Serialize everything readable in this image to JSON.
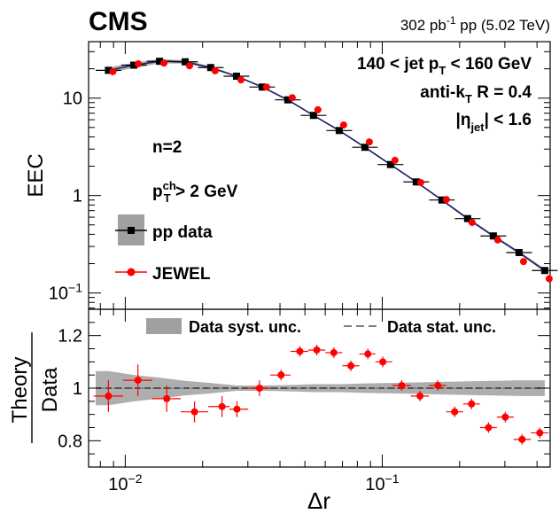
{
  "header": {
    "experiment": "CMS",
    "lumi_value": "302 pb",
    "lumi_exp": "-1",
    "lumi_rest": " pp (5.02 TeV)"
  },
  "info": {
    "jetpt": {
      "pre": "140 < jet p",
      "sub": "T",
      "post": " < 160 GeV"
    },
    "algo": {
      "pre": "anti-k",
      "sub": "T",
      "post": " R = 0.4"
    },
    "eta": {
      "pre": "|η",
      "sub": "jet",
      "post": "| < 1.6"
    },
    "n": "n=2",
    "ptch": {
      "pre": "p",
      "sup": "ch",
      "sub": "T",
      "post": " > 2 GeV"
    }
  },
  "colors": {
    "data": "#000000",
    "jewel": "#ff0000",
    "band": "#a0a0a0",
    "line": "#1a1a66"
  },
  "chart_data": [
    {
      "type": "scatter",
      "panel": "top",
      "ylabel": "EEC",
      "xscale": "log",
      "yscale": "log",
      "xlim": [
        0.0072,
        0.45
      ],
      "ylim": [
        0.068,
        38
      ],
      "x": [
        0.0086,
        0.0108,
        0.0136,
        0.0171,
        0.0215,
        0.0271,
        0.0341,
        0.0429,
        0.054,
        0.068,
        0.0856,
        0.1077,
        0.1356,
        0.1707,
        0.2149,
        0.2705,
        0.3406,
        0.4288
      ],
      "series": [
        {
          "name": "pp data",
          "style": "square-with-syst-band",
          "values": [
            19.3,
            21.8,
            23.9,
            23.6,
            20.6,
            16.8,
            13.0,
            9.6,
            6.65,
            4.65,
            3.13,
            2.08,
            1.38,
            0.9,
            0.58,
            0.385,
            0.26,
            0.17
          ],
          "syst_rel": [
            0.07,
            0.06,
            0.05,
            0.04,
            0.03,
            0.02,
            0.02,
            0.02,
            0.02,
            0.02,
            0.02,
            0.02,
            0.02,
            0.025,
            0.03,
            0.03,
            0.035,
            0.04
          ]
        },
        {
          "name": "JEWEL",
          "style": "circle",
          "values": [
            18.7,
            22.5,
            22.9,
            21.5,
            19.1,
            15.4,
            13.0,
            10.1,
            7.6,
            5.3,
            3.55,
            2.3,
            1.36,
            0.91,
            0.53,
            0.35,
            0.21,
            0.14
          ]
        }
      ],
      "yticks": [
        {
          "value": 10,
          "label": "10"
        },
        {
          "value": 1,
          "label": "1"
        },
        {
          "value": 0.1,
          "label": "10",
          "exp": "−1"
        }
      ],
      "legend": [
        {
          "label": "pp data",
          "style": "data"
        },
        {
          "label": "JEWEL",
          "style": "jewel"
        }
      ]
    },
    {
      "type": "scatter",
      "panel": "bottom",
      "ylabel_num": "Theory",
      "ylabel_den": "Data",
      "xlabel": "Δr",
      "xscale": "log",
      "xlim": [
        0.0072,
        0.45
      ],
      "ylim": [
        0.7,
        1.3
      ],
      "x": [
        0.0086,
        0.0108,
        0.0136,
        0.0171,
        0.0215,
        0.0271,
        0.0341,
        0.0429,
        0.054,
        0.068,
        0.0856,
        0.1077,
        0.1356,
        0.1707,
        0.2149,
        0.2705,
        0.3406,
        0.4288
      ],
      "series": [
        {
          "name": "JEWEL / Data",
          "style": "circle",
          "values": [
            0.97,
            1.03,
            0.96,
            0.91,
            0.93,
            0.92,
            1.0,
            1.05,
            1.14,
            1.145,
            1.135,
            1.085,
            1.13,
            1.1,
            1.01,
            0.97,
            1.01,
            0.91,
            0.94,
            0.85,
            0.89,
            0.805,
            0.83
          ],
          "errors": [
            0.06,
            0.06,
            0.05,
            0.04,
            0.04,
            0.03,
            0.03,
            0.02,
            0.02,
            0.02,
            0.02,
            0.02,
            0.02,
            0.02,
            0.02,
            0.02,
            0.02,
            0.02,
            0.02,
            0.02,
            0.02,
            0.02,
            0.02
          ],
          "x": [
            0.0086,
            0.0112,
            0.0145,
            0.0186,
            0.0238,
            0.0272,
            0.0333,
            0.0404,
            0.0478,
            0.0556,
            0.0648,
            0.0755,
            0.0879,
            0.1005,
            0.119,
            0.1402,
            0.1645,
            0.1913,
            0.2225,
            0.259,
            0.301,
            0.35,
            0.41
          ]
        },
        {
          "name": "Data syst. unc.",
          "style": "band",
          "band_halfwidth": [
            0.065,
            0.05,
            0.04,
            0.028,
            0.02,
            0.01,
            0.01,
            0.012,
            0.015,
            0.015,
            0.018,
            0.02,
            0.022,
            0.024,
            0.026,
            0.028,
            0.03,
            0.03
          ]
        },
        {
          "name": "Data stat. unc.",
          "style": "dashed-line",
          "values": [
            1.0
          ]
        }
      ],
      "yticks": [
        {
          "value": 0.8,
          "label": "0.8"
        },
        {
          "value": 1,
          "label": "1"
        },
        {
          "value": 1.2,
          "label": "1.2"
        }
      ],
      "xticks": [
        {
          "value": 0.01,
          "label": "10",
          "exp": "−2"
        },
        {
          "value": 0.1,
          "label": "10",
          "exp": "−1"
        }
      ],
      "legend": [
        {
          "label": "Data syst. unc.",
          "style": "band"
        },
        {
          "label": "Data stat. unc.",
          "style": "dashed"
        }
      ]
    }
  ]
}
